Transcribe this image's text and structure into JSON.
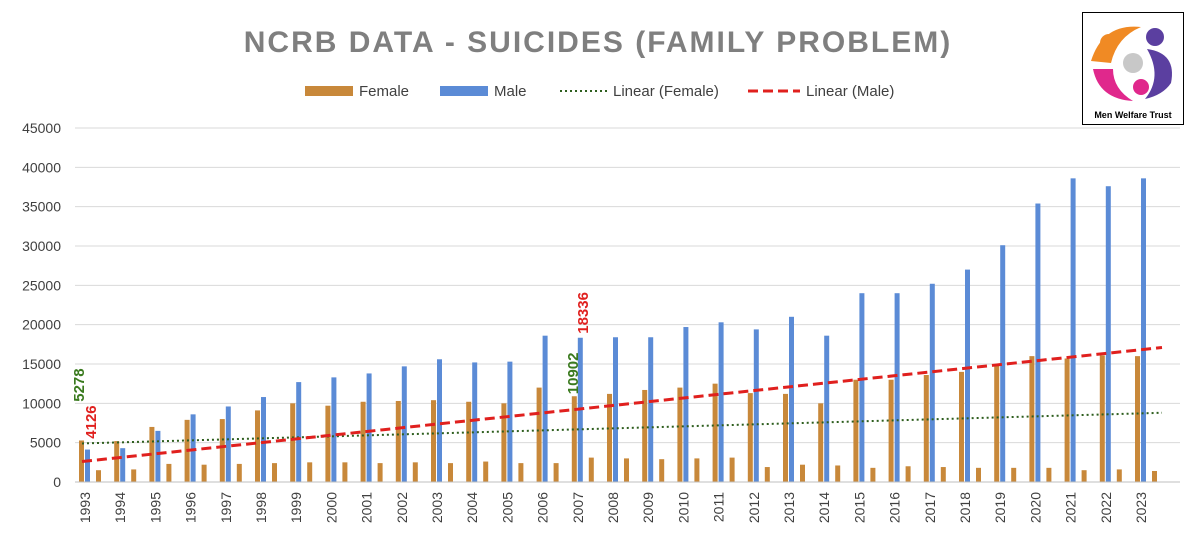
{
  "chart_data": {
    "type": "bar",
    "title": "NCRB DATA - SUICIDES (FAMILY PROBLEM)",
    "categories": [
      "1993",
      "1994",
      "1995",
      "1996",
      "1997",
      "1998",
      "1999",
      "2000",
      "2001",
      "2002",
      "2003",
      "2004",
      "2005",
      "2006",
      "2007",
      "2008",
      "2009",
      "2010",
      "2011",
      "2012",
      "2013",
      "2014",
      "2015",
      "2016",
      "2017",
      "2018",
      "2019",
      "2020",
      "2021",
      "2022",
      "2023"
    ],
    "series": [
      {
        "name": "Female",
        "color": "#C8883A",
        "values": [
          5278,
          5200,
          7000,
          7900,
          8000,
          9100,
          10000,
          9700,
          10200,
          10300,
          10400,
          10200,
          10000,
          12000,
          10902,
          11200,
          11700,
          12000,
          12500,
          11300,
          11200,
          10000,
          13000,
          13000,
          13600,
          14000,
          14800,
          16000,
          15700,
          16100,
          16000
        ]
      },
      {
        "name": "Male",
        "color": "#5B8BD6",
        "values": [
          4126,
          4300,
          6500,
          8600,
          9600,
          10800,
          12700,
          13300,
          13800,
          14700,
          15600,
          15200,
          15300,
          18600,
          18336,
          18400,
          18400,
          19700,
          20300,
          19400,
          21000,
          18600,
          24000,
          24000,
          25200,
          27000,
          30100,
          35400,
          38600,
          37600,
          38600
        ]
      }
    ],
    "secondary_bars": {
      "color": "#C8883A",
      "values": [
        1500,
        1600,
        2300,
        2200,
        2300,
        2400,
        2500,
        2500,
        2400,
        2500,
        2400,
        2600,
        2400,
        2400,
        3100,
        3000,
        2900,
        3000,
        3100,
        1900,
        2200,
        2100,
        1800,
        2000,
        1900,
        1800,
        1800,
        1800,
        1500,
        1600,
        1400
      ]
    },
    "trendlines": [
      {
        "name": "Linear (Female)",
        "color": "#2E5E1E",
        "style": "dotted",
        "start": 4900,
        "end": 8800
      },
      {
        "name": "Linear (Male)",
        "color": "#E0201E",
        "style": "dashed",
        "start": 2600,
        "end": 17100
      }
    ],
    "ylim": [
      0,
      45000
    ],
    "yticks": [
      0,
      5000,
      10000,
      15000,
      20000,
      25000,
      30000,
      35000,
      40000,
      45000
    ],
    "annotations": [
      {
        "text": "5278",
        "category": "1993",
        "color": "#3A7A1E",
        "value": 5278
      },
      {
        "text": "4126",
        "category": "1993",
        "color": "#E0201E",
        "value": 4126
      },
      {
        "text": "10902",
        "category": "2007",
        "color": "#3A7A1E",
        "value": 10902
      },
      {
        "text": "18336",
        "category": "2007",
        "color": "#E0201E",
        "value": 18336
      }
    ],
    "legend_position": "top",
    "xlabel": "",
    "ylabel": ""
  },
  "logo": {
    "caption": "Men Welfare Trust"
  }
}
